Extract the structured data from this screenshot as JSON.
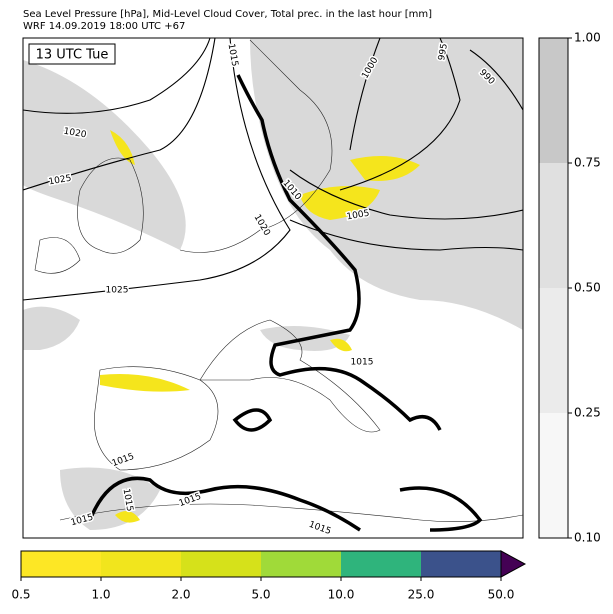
{
  "header": {
    "title": "Sea Level Pressure [hPa], Mid-Level Cloud Cover, Total prec. in the last hour [mm]",
    "subtitle": "WRF 14.09.2019 18:00 UTC +67"
  },
  "map": {
    "time_label": "13 UTC Tue",
    "isobar_labels": [
      1015,
      1020,
      1025,
      1025,
      1000,
      995,
      990,
      1010,
      1005,
      1020,
      1015,
      1015,
      1015,
      1015,
      1015,
      1015
    ]
  },
  "cloud_colorbar": {
    "ticks": [
      {
        "value": 0.1,
        "label": "0.10"
      },
      {
        "value": 0.25,
        "label": "0.25"
      },
      {
        "value": 0.5,
        "label": "0.50"
      },
      {
        "value": 0.75,
        "label": "0.75"
      },
      {
        "value": 1,
        "label": "1.00"
      }
    ],
    "colors": [
      "#f7f7f7",
      "#ebebeb",
      "#e0e0e0",
      "#c8c8c8"
    ]
  },
  "precip_colorbar": {
    "ticks": [
      0.5,
      {
        "value": 1,
        "label": "1.0"
      },
      {
        "value": 2,
        "label": "2.0"
      },
      {
        "value": 5,
        "label": "5.0"
      },
      {
        "value": 10,
        "label": "10.0"
      },
      {
        "value": 25,
        "label": "25.0"
      },
      {
        "value": 50,
        "label": "50.0"
      }
    ],
    "colors": [
      "#fde725",
      "#f1e51d",
      "#d6e11a",
      "#a0da39",
      "#2fb47c",
      "#3b528b"
    ],
    "extend_color": "#440154"
  }
}
